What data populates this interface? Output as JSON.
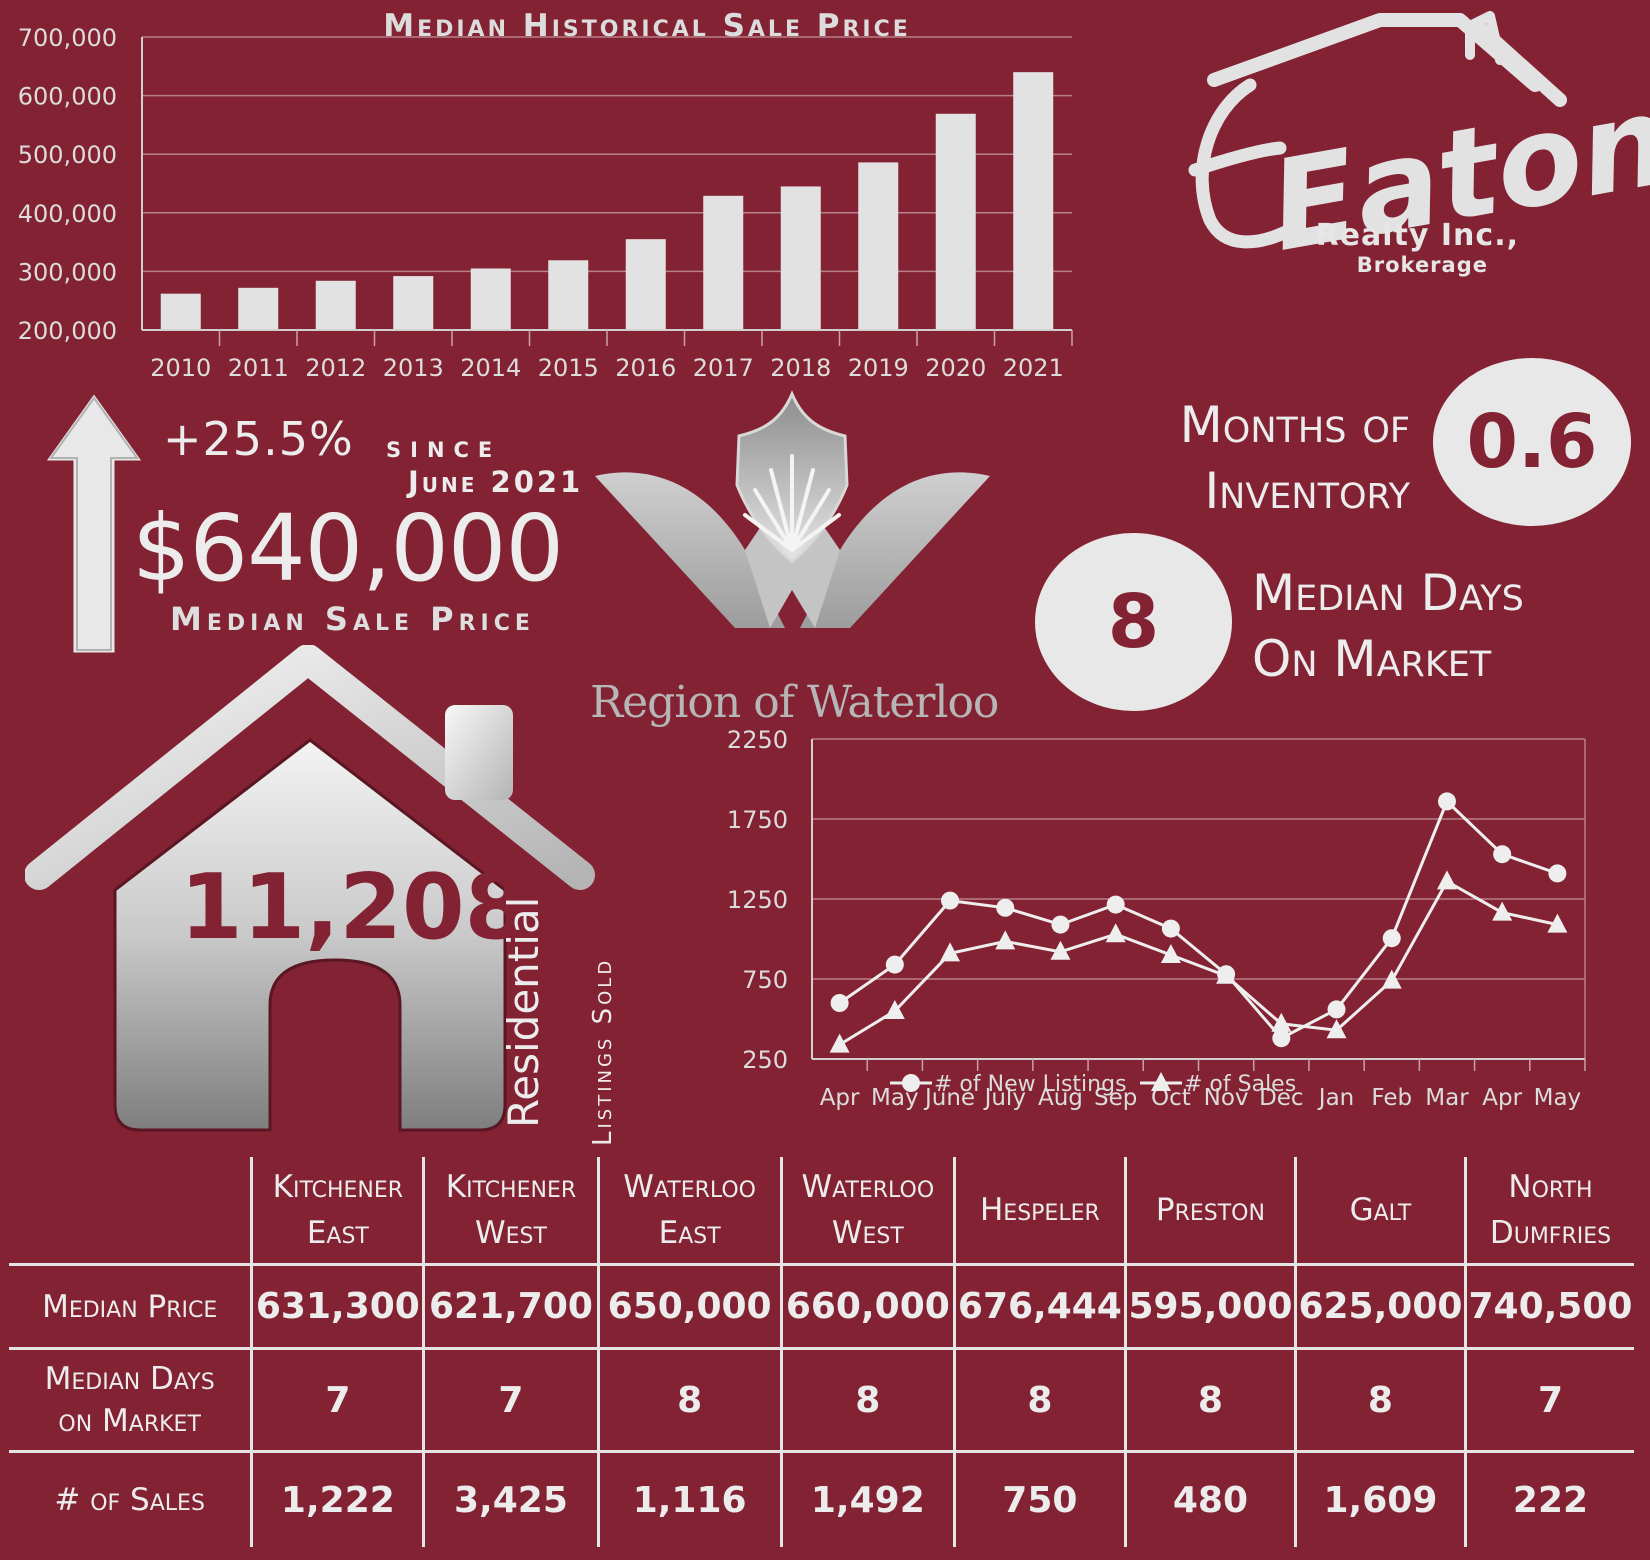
{
  "chart_data": [
    {
      "type": "bar",
      "title": "Median Historical Sale Price",
      "categories": [
        "2010",
        "2011",
        "2012",
        "2013",
        "2014",
        "2015",
        "2016",
        "2017",
        "2018",
        "2019",
        "2020",
        "2021"
      ],
      "values": [
        262000,
        272000,
        284000,
        292000,
        305000,
        319000,
        355000,
        429000,
        445000,
        486000,
        569000,
        640000
      ],
      "ylim": [
        200000,
        700000
      ],
      "yticks": [
        "200,000",
        "300,000",
        "400,000",
        "500,000",
        "600,000",
        "700,000"
      ],
      "grid": true,
      "bar_color": "#e2e2e2"
    },
    {
      "type": "line",
      "categories": [
        "Apr",
        "May",
        "June",
        "July",
        "Aug",
        "Sep",
        "Oct",
        "Nov",
        "Dec",
        "Jan",
        "Feb",
        "Mar",
        "Apr",
        "May"
      ],
      "series": [
        {
          "name": "# of New Listings",
          "marker": "circle",
          "values": [
            600,
            840,
            1240,
            1195,
            1090,
            1215,
            1065,
            780,
            380,
            560,
            1005,
            1860,
            1530,
            1410
          ]
        },
        {
          "name": "# of Sales",
          "marker": "triangle",
          "values": [
            340,
            550,
            910,
            985,
            920,
            1030,
            900,
            770,
            470,
            430,
            740,
            1360,
            1165,
            1090
          ]
        }
      ],
      "ylim": [
        250,
        2250
      ],
      "yticks": [
        "250",
        "750",
        "1250",
        "1750",
        "2250"
      ],
      "grid": true,
      "legend": "bottom"
    }
  ],
  "brand": {
    "name": "Eaton",
    "line1": "Realty Inc.,",
    "line2": "Brokerage"
  },
  "region": {
    "name": "Region of Waterloo"
  },
  "price": {
    "change": "+25.5%",
    "since": "since",
    "since_date": "June 2021",
    "value": "$640,000",
    "label": "Median Sale Price"
  },
  "inventory": {
    "label_line1": "Months of",
    "label_line2": "Inventory",
    "value": "0.6"
  },
  "days": {
    "value": "8",
    "label_line1": "Median Days",
    "label_line2": "On Market"
  },
  "sold": {
    "count": "11,208",
    "label1": "Residential",
    "label2": "Listings Sold"
  },
  "table": {
    "columns": [
      [
        "Kitchener",
        "East"
      ],
      [
        "Kitchener",
        "West"
      ],
      [
        "Waterloo",
        "East"
      ],
      [
        "Waterloo",
        "West"
      ],
      [
        "Hespeler",
        ""
      ],
      [
        "Preston",
        ""
      ],
      [
        "Galt",
        ""
      ],
      [
        "North",
        "Dumfries"
      ]
    ],
    "rows": [
      {
        "label1": "Median Price",
        "label2": "",
        "values": [
          "631,300",
          "621,700",
          "650,000",
          "660,000",
          "676,444",
          "595,000",
          "625,000",
          "740,500"
        ]
      },
      {
        "label1": "Median Days",
        "label2": "on Market",
        "values": [
          "7",
          "7",
          "8",
          "8",
          "8",
          "8",
          "8",
          "7"
        ]
      },
      {
        "label1": "# of Sales",
        "label2": "",
        "values": [
          "1,222",
          "3,425",
          "1,116",
          "1,492",
          "750",
          "480",
          "1,609",
          "222"
        ]
      }
    ]
  },
  "colors": {
    "background": "#822233",
    "foreground": "#e6e6e6"
  }
}
